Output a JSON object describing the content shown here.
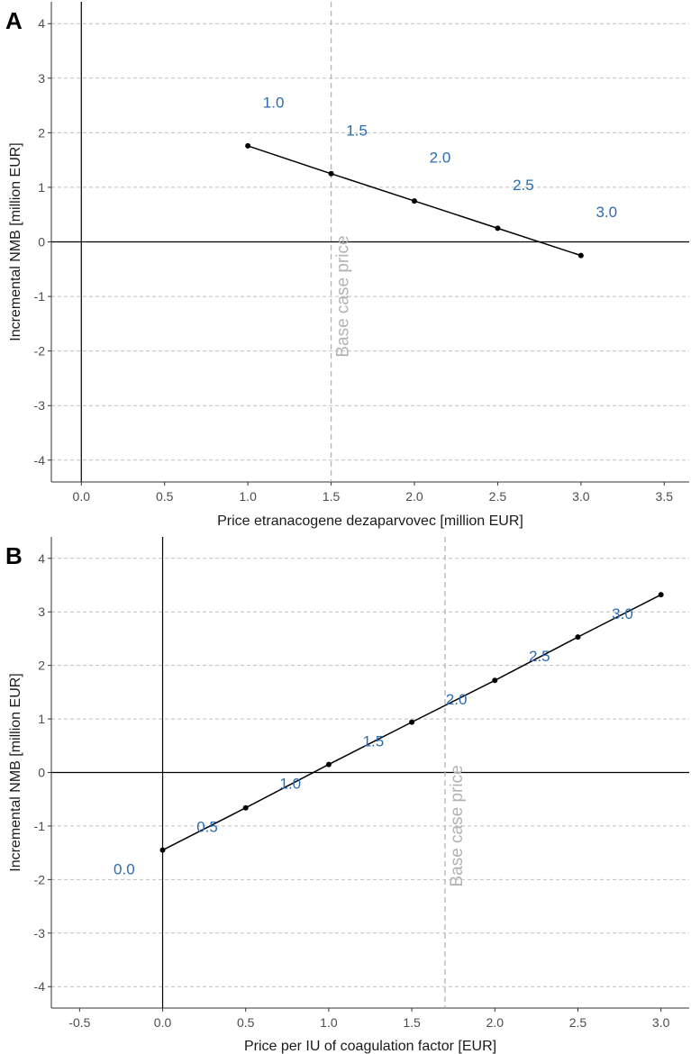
{
  "chart_data": [
    {
      "type": "line",
      "panel": "A",
      "xlabel": "Price etranacogene dezaparvovec [million EUR]",
      "ylabel": "Incremental NMB [million EUR]",
      "xlim": [
        -0.18,
        3.65
      ],
      "ylim": [
        -4.4,
        4.4
      ],
      "x_ticks": [
        0.0,
        0.5,
        1.0,
        1.5,
        2.0,
        2.5,
        3.0,
        3.5
      ],
      "x_tick_labels": [
        "0.0",
        "0.5",
        "1.0",
        "1.5",
        "2.0",
        "2.5",
        "3.0",
        "3.5"
      ],
      "y_ticks": [
        -4,
        -3,
        -2,
        -1,
        0,
        1,
        2,
        3,
        4
      ],
      "y_tick_labels": [
        "-4",
        "-3",
        "-2",
        "-1",
        "0",
        "1",
        "2",
        "3",
        "4"
      ],
      "series": [
        {
          "name": "Incremental NMB",
          "x": [
            1.0,
            1.5,
            2.0,
            2.5,
            3.0
          ],
          "y": [
            1.76,
            1.25,
            0.75,
            0.25,
            -0.25
          ],
          "labels": [
            "1.0",
            "1.5",
            "2.0",
            "2.5",
            "3.0"
          ],
          "label_dx": [
            0.1,
            0.1,
            0.1,
            0.1,
            0.1
          ],
          "label_dy": [
            0.8,
            0.8,
            0.8,
            0.8,
            0.8
          ]
        }
      ],
      "reference_line": {
        "x": 1.5,
        "label": "Base case price"
      },
      "grid": "horizontal dashed"
    },
    {
      "type": "line",
      "panel": "B",
      "xlabel": "Price per IU of coagulation factor [EUR]",
      "ylabel": "Incremental NMB [million EUR]",
      "xlim": [
        -0.67,
        3.17
      ],
      "ylim": [
        -4.4,
        4.4
      ],
      "x_ticks": [
        -0.5,
        0.0,
        0.5,
        1.0,
        1.5,
        2.0,
        2.5,
        3.0
      ],
      "x_tick_labels": [
        "-0.5",
        "0.0",
        "0.5",
        "1.0",
        "1.5",
        "2.0",
        "2.5",
        "3.0"
      ],
      "y_ticks": [
        -4,
        -3,
        -2,
        -1,
        0,
        1,
        2,
        3,
        4
      ],
      "y_tick_labels": [
        "-4",
        "-3",
        "-2",
        "-1",
        "0",
        "1",
        "2",
        "3",
        "4"
      ],
      "series": [
        {
          "name": "Incremental NMB",
          "x": [
            0.0,
            0.5,
            1.0,
            1.5,
            2.0,
            2.5,
            3.0
          ],
          "y": [
            -1.45,
            -0.66,
            0.15,
            0.94,
            1.72,
            2.53,
            3.32
          ],
          "labels": [
            "0.0",
            "0.5",
            "1.0",
            "1.5",
            "2.0",
            "2.5",
            "3.0"
          ],
          "label_dx": [
            -0.2,
            -0.2,
            -0.2,
            -0.2,
            -0.2,
            -0.2,
            -0.2
          ],
          "label_dy": [
            -0.35,
            -0.35,
            -0.35,
            -0.35,
            -0.35,
            -0.35,
            -0.35
          ]
        }
      ],
      "reference_line": {
        "x": 1.7,
        "label": "Base case price"
      },
      "grid": "horizontal dashed"
    }
  ],
  "colors": {
    "line": "#000000",
    "point_label": "#2b6cb0",
    "grid": "#bfbfbf",
    "reference_line": "#b3b3b3",
    "axis": "#333333"
  }
}
